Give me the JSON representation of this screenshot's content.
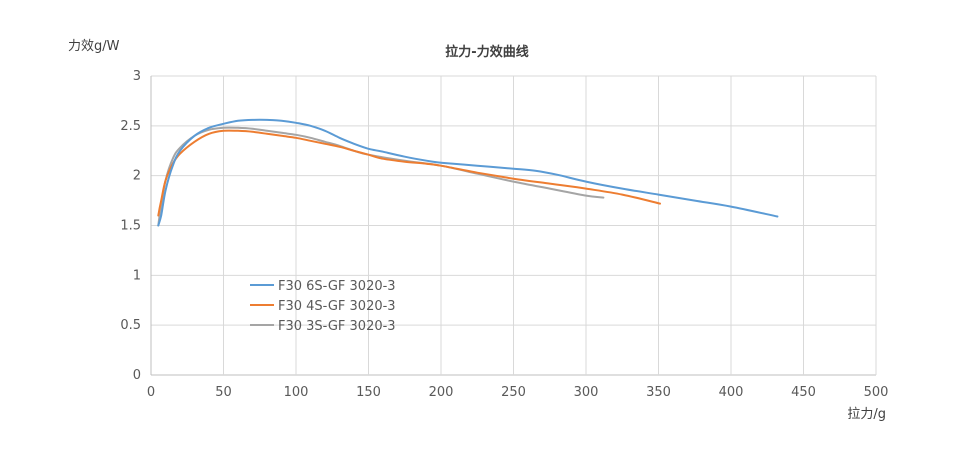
{
  "chart_data": {
    "type": "line",
    "title": "拉力-力效曲线",
    "xlabel": "拉力/g",
    "ylabel": "力效g/W",
    "xlim": [
      0,
      500
    ],
    "ylim": [
      0,
      3
    ],
    "x_ticks": [
      0,
      50,
      100,
      150,
      200,
      250,
      300,
      350,
      400,
      450,
      500
    ],
    "y_ticks": [
      0,
      0.5,
      1,
      1.5,
      2,
      2.5,
      3
    ],
    "y_tick_labels": [
      "0",
      "0.5",
      "1",
      "1.5",
      "2",
      "2.5",
      "3"
    ],
    "grid": true,
    "legend_position": "inside-lower-left",
    "series": [
      {
        "name": "F30 6S-GF 3020-3",
        "color": "#5b9bd5",
        "x": [
          5,
          7,
          10,
          15,
          20,
          30,
          40,
          50,
          60,
          70,
          80,
          90,
          100,
          110,
          120,
          130,
          140,
          150,
          160,
          175,
          190,
          200,
          225,
          250,
          265,
          280,
          300,
          325,
          350,
          375,
          400,
          432
        ],
        "y": [
          1.5,
          1.6,
          1.85,
          2.1,
          2.25,
          2.4,
          2.48,
          2.52,
          2.55,
          2.56,
          2.56,
          2.55,
          2.53,
          2.5,
          2.45,
          2.38,
          2.32,
          2.27,
          2.24,
          2.19,
          2.15,
          2.13,
          2.1,
          2.07,
          2.05,
          2.01,
          1.94,
          1.87,
          1.81,
          1.75,
          1.69,
          1.59
        ]
      },
      {
        "name": "F30 4S-GF 3020-3",
        "color": "#ed7d31",
        "x": [
          5,
          7,
          10,
          15,
          20,
          30,
          40,
          50,
          60,
          70,
          80,
          90,
          100,
          110,
          120,
          130,
          140,
          150,
          160,
          175,
          190,
          200,
          225,
          250,
          275,
          300,
          325,
          351
        ],
        "y": [
          1.6,
          1.75,
          1.95,
          2.12,
          2.22,
          2.34,
          2.42,
          2.45,
          2.45,
          2.44,
          2.42,
          2.4,
          2.38,
          2.35,
          2.32,
          2.29,
          2.25,
          2.21,
          2.17,
          2.14,
          2.12,
          2.1,
          2.03,
          1.97,
          1.92,
          1.87,
          1.81,
          1.72
        ]
      },
      {
        "name": "F30 3S-GF 3020-3",
        "color": "#a5a5a5",
        "x": [
          5,
          7,
          10,
          15,
          20,
          30,
          40,
          50,
          60,
          70,
          80,
          90,
          100,
          110,
          120,
          130,
          140,
          150,
          175,
          200,
          225,
          250,
          275,
          300,
          312
        ],
        "y": [
          1.5,
          1.7,
          1.95,
          2.17,
          2.28,
          2.4,
          2.46,
          2.48,
          2.48,
          2.47,
          2.45,
          2.43,
          2.41,
          2.38,
          2.34,
          2.3,
          2.25,
          2.21,
          2.15,
          2.1,
          2.02,
          1.94,
          1.87,
          1.8,
          1.78
        ]
      }
    ]
  }
}
